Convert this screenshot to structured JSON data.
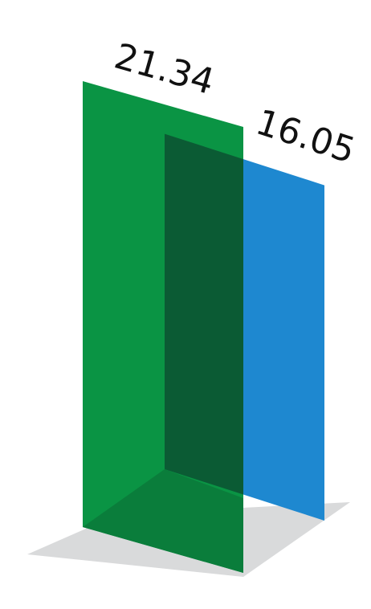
{
  "chart_data": {
    "type": "bar",
    "style": "3d-isometric-panels",
    "categories": [
      "",
      ""
    ],
    "values": [
      21.34,
      16.05
    ],
    "labels": [
      "21.34",
      "16.05"
    ],
    "colors": [
      "#0a9444",
      "#1e88d0"
    ],
    "overlap_color": "#0b5b34",
    "floor_color": "#d9dadb",
    "grid": false,
    "legend": "none"
  }
}
